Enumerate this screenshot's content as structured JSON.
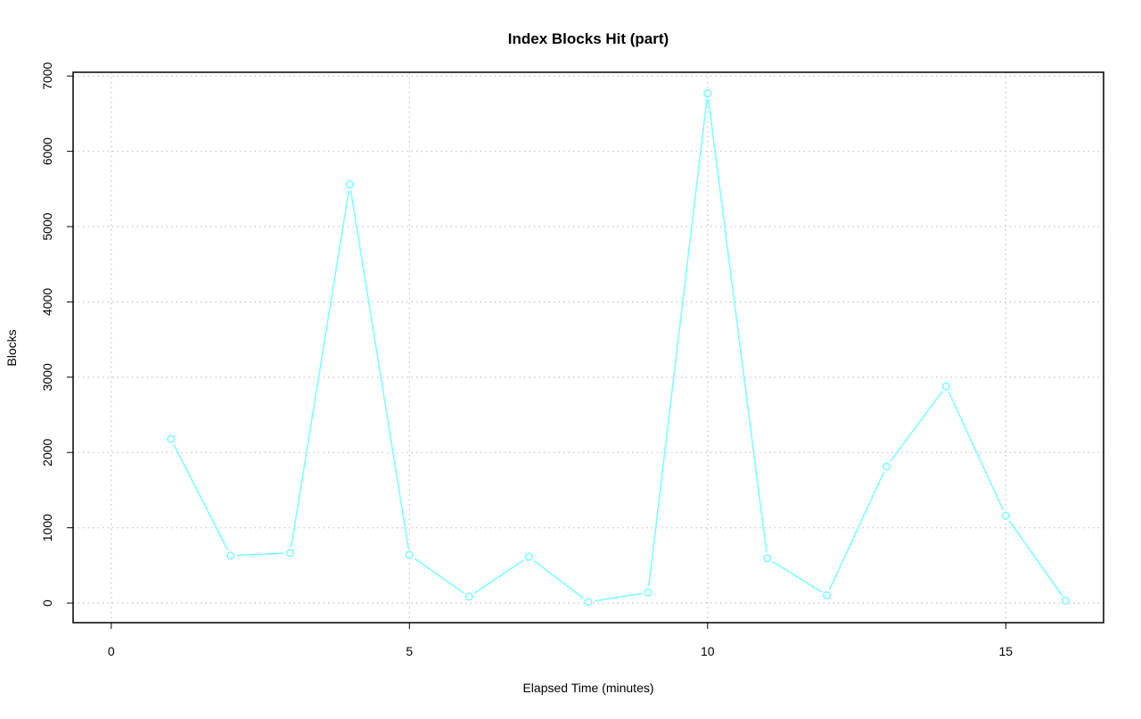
{
  "chart_data": {
    "type": "line",
    "title": "Index Blocks Hit (part)",
    "xlabel": "Elapsed Time (minutes)",
    "ylabel": "Blocks",
    "x": [
      1,
      2,
      3,
      4,
      5,
      6,
      7,
      8,
      9,
      10,
      11,
      12,
      13,
      14,
      15,
      16
    ],
    "series": [
      {
        "values": [
          2180,
          630,
          665,
          5560,
          640,
          85,
          615,
          15,
          140,
          6770,
          595,
          105,
          1815,
          2880,
          1160,
          35
        ],
        "color": "#7fffff"
      }
    ],
    "xlim": [
      -0.64,
      16.64
    ],
    "ylim": [
      -260,
      7050
    ],
    "xticks": [
      0,
      5,
      10,
      15
    ],
    "xtick_labels": [
      "0",
      "5",
      "10",
      "15"
    ],
    "yticks": [
      0,
      1000,
      2000,
      3000,
      4000,
      5000,
      6000,
      7000
    ],
    "ytick_labels": [
      "0",
      "1000",
      "2000",
      "3000",
      "4000",
      "5000",
      "6000",
      "7000"
    ],
    "grid": true,
    "markers": "open-circle"
  }
}
